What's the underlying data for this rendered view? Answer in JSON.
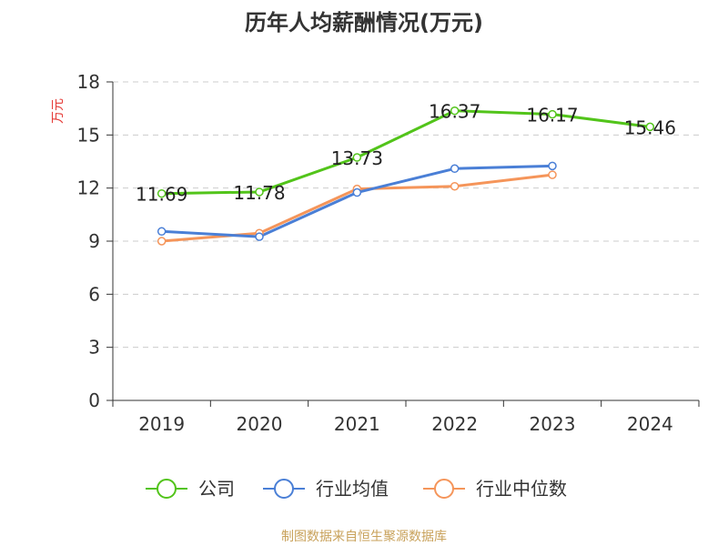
{
  "chart_data": {
    "type": "line",
    "title": "历年人均薪酬情况(万元)",
    "ylabel": "万元",
    "xlabel": "",
    "categories": [
      "2019",
      "2020",
      "2021",
      "2022",
      "2023",
      "2024"
    ],
    "ylim": [
      0,
      18
    ],
    "yticks": [
      0,
      3,
      6,
      9,
      12,
      15,
      18
    ],
    "grid": true,
    "legend_position": "bottom",
    "series": [
      {
        "name": "公司",
        "color": "#52c41a",
        "values": [
          11.69,
          11.78,
          13.73,
          16.37,
          16.17,
          15.46
        ],
        "show_labels": true
      },
      {
        "name": "行业均值",
        "color": "#4a7fd6",
        "values": [
          9.55,
          9.25,
          11.75,
          13.1,
          13.25,
          null
        ],
        "show_labels": false
      },
      {
        "name": "行业中位数",
        "color": "#f5955a",
        "values": [
          9.0,
          9.45,
          11.95,
          12.1,
          12.75,
          null
        ],
        "show_labels": false
      }
    ],
    "source": "制图数据来自恒生聚源数据库"
  }
}
